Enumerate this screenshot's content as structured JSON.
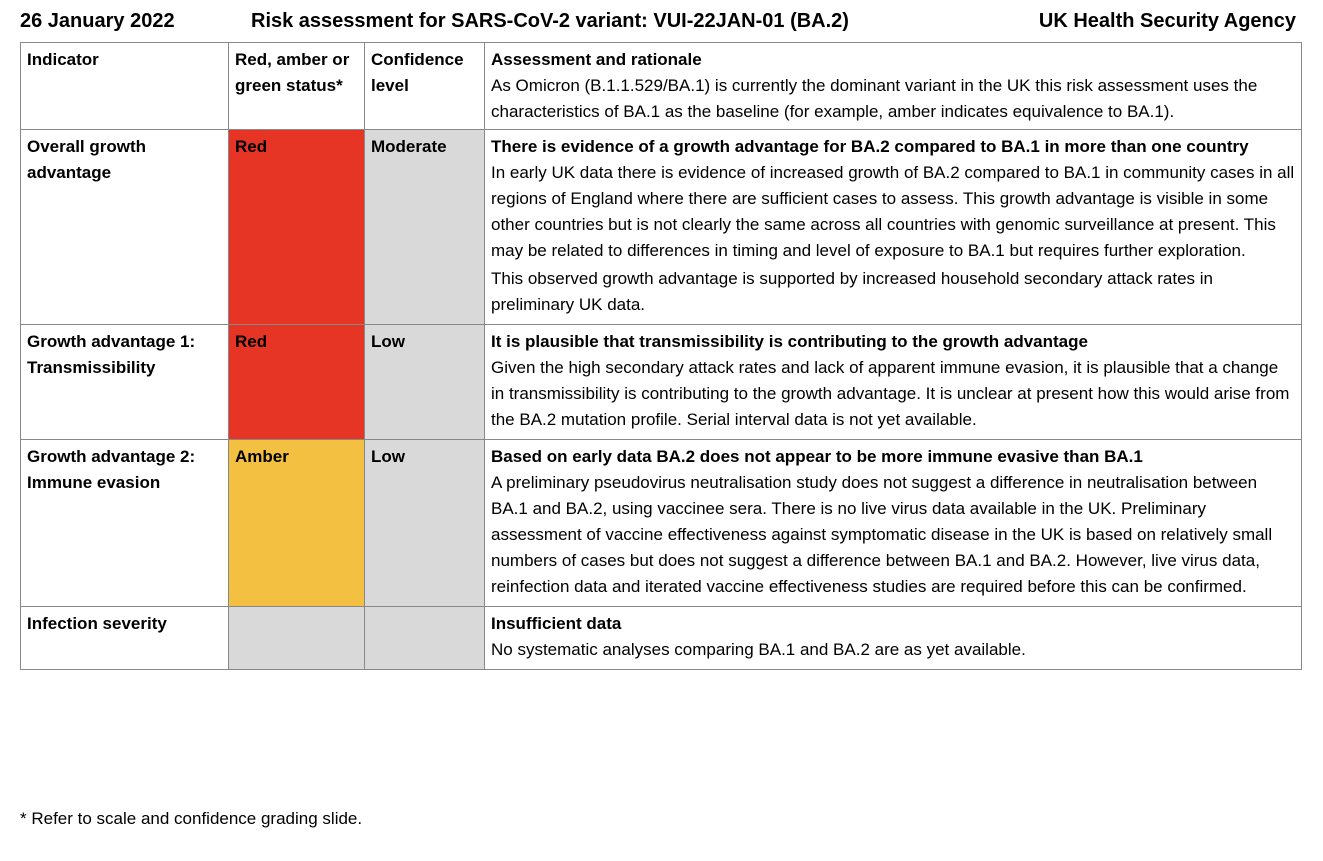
{
  "header": {
    "date": "26 January 2022",
    "title": "Risk assessment for SARS-CoV-2 variant: VUI-22JAN-01 (BA.2)",
    "agency": "UK Health Security Agency"
  },
  "columns": {
    "indicator": "Indicator",
    "status": "Red, amber or green status*",
    "confidence": "Confidence level",
    "assessment": "Assessment and rationale",
    "assessment_intro": "As Omicron (B.1.1.529/BA.1) is currently the dominant variant in the UK this risk assessment uses the characteristics of BA.1 as the baseline (for example, amber indicates equivalence to BA.1)."
  },
  "rows": [
    {
      "indicator": "Overall growth advantage",
      "status": "Red",
      "confidence": "Moderate",
      "heading": "There is evidence of a growth advantage for BA.2 compared to BA.1 in more than one country",
      "paragraphs": [
        "In early UK data there is evidence of increased growth of BA.2 compared to BA.1 in community cases in all regions of England where there are sufficient cases to assess. This growth advantage is visible in some other countries but is not clearly the same across all countries with genomic surveillance at present. This may be related to differences in timing and level of exposure to BA.1 but requires further exploration.",
        "This observed growth advantage is supported by increased household secondary attack rates in preliminary UK data."
      ]
    },
    {
      "indicator": "Growth advantage 1: Transmissibility",
      "status": "Red",
      "confidence": "Low",
      "heading": "It is plausible that transmissibility is contributing to the growth advantage",
      "paragraphs": [
        "Given the high secondary attack rates and lack of apparent immune evasion, it is plausible that a change in transmissibility is contributing to the growth advantage. It is unclear at present how this would arise from the BA.2 mutation profile. Serial interval data is not yet available."
      ]
    },
    {
      "indicator": "Growth advantage 2: Immune evasion",
      "status": "Amber",
      "confidence": "Low",
      "heading": "Based on early data BA.2 does not appear to be more immune evasive than BA.1",
      "paragraphs": [
        "A preliminary pseudovirus neutralisation study does not suggest a difference in neutralisation between BA.1 and BA.2, using vaccinee sera. There is no live virus data available in the UK. Preliminary assessment of vaccine effectiveness against symptomatic disease in the UK is based on relatively small numbers of cases but does not suggest a difference between BA.1 and BA.2. However, live virus data, reinfection data and iterated vaccine effectiveness studies are required before this can be confirmed."
      ]
    },
    {
      "indicator": "Infection severity",
      "status": "",
      "confidence": "",
      "heading": "Insufficient data",
      "paragraphs": [
        "No systematic analyses comparing BA.1 and BA.2 are as yet available."
      ]
    }
  ],
  "colors": {
    "red": "#e73525",
    "amber": "#f4c041",
    "grey": "#d9d9d9"
  },
  "footnote": "* Refer to scale and confidence grading slide."
}
